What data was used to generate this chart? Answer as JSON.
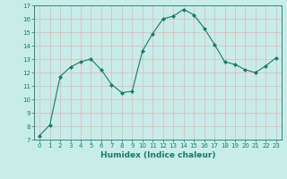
{
  "x": [
    0,
    1,
    2,
    3,
    4,
    5,
    6,
    7,
    8,
    9,
    10,
    11,
    12,
    13,
    14,
    15,
    16,
    17,
    18,
    19,
    20,
    21,
    22,
    23
  ],
  "y": [
    7.3,
    8.1,
    11.7,
    12.4,
    12.8,
    13.0,
    12.2,
    11.1,
    10.5,
    10.6,
    13.6,
    14.9,
    16.0,
    16.2,
    16.7,
    16.3,
    15.3,
    14.1,
    12.8,
    12.6,
    12.2,
    12.0,
    12.5,
    13.1
  ],
  "line_color": "#1a7a6a",
  "marker": "D",
  "marker_size": 2,
  "bg_color": "#c8ece8",
  "grid_color": "#e0b8b8",
  "xlabel": "Humidex (Indice chaleur)",
  "xlim": [
    -0.5,
    23.5
  ],
  "ylim": [
    7,
    17
  ],
  "yticks": [
    7,
    8,
    9,
    10,
    11,
    12,
    13,
    14,
    15,
    16,
    17
  ],
  "xticks": [
    0,
    1,
    2,
    3,
    4,
    5,
    6,
    7,
    8,
    9,
    10,
    11,
    12,
    13,
    14,
    15,
    16,
    17,
    18,
    19,
    20,
    21,
    22,
    23
  ]
}
